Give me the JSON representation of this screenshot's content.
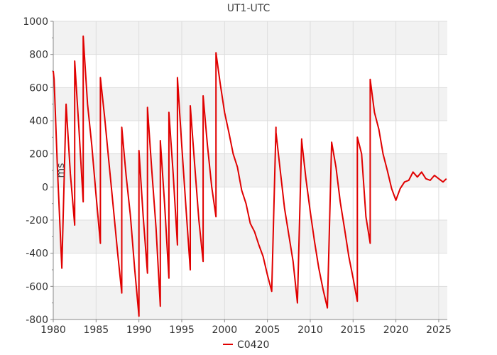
{
  "chart_data": {
    "type": "line",
    "title": "UT1-UTC",
    "xlabel": "",
    "ylabel": "ms",
    "xlim": [
      1980,
      2026
    ],
    "ylim": [
      -800,
      1000
    ],
    "x_ticks": [
      "1980",
      "1985",
      "1990",
      "1995",
      "2000",
      "2005",
      "2010",
      "2015",
      "2020",
      "2025"
    ],
    "y_ticks": [
      "1000",
      "800",
      "600",
      "400",
      "200",
      "0",
      "-200",
      "-400",
      "-600",
      "-800"
    ],
    "grid": true,
    "legend_position": "bottom",
    "colors": {
      "series": "#e00000",
      "band": "#f2f2f2",
      "grid": "#dddddd"
    },
    "series": [
      {
        "name": "C0420",
        "x": [
          1980.0,
          1980.1,
          1980.5,
          1981.0,
          1981.5,
          1981.5,
          1982.0,
          1982.5,
          1982.5,
          1983.0,
          1983.5,
          1983.5,
          1984.0,
          1984.5,
          1985.0,
          1985.5,
          1985.5,
          1986.0,
          1986.5,
          1987.0,
          1987.5,
          1988.0,
          1988.0,
          1988.5,
          1989.0,
          1989.5,
          1990.0,
          1990.0,
          1990.5,
          1991.0,
          1991.0,
          1991.5,
          1992.0,
          1992.5,
          1992.5,
          1993.0,
          1993.5,
          1993.5,
          1994.0,
          1994.5,
          1994.5,
          1995.0,
          1995.5,
          1996.0,
          1996.0,
          1996.5,
          1997.0,
          1997.5,
          1997.5,
          1998.0,
          1998.5,
          1999.0,
          1999.0,
          1999.5,
          2000.0,
          2000.5,
          2001.0,
          2001.5,
          2002.0,
          2002.5,
          2003.0,
          2003.5,
          2004.0,
          2004.5,
          2005.0,
          2005.5,
          2006.0,
          2006.0,
          2006.5,
          2007.0,
          2007.5,
          2008.0,
          2008.5,
          2009.0,
          2009.0,
          2009.5,
          2010.0,
          2010.5,
          2011.0,
          2011.5,
          2012.0,
          2012.5,
          2012.5,
          2013.0,
          2013.5,
          2014.0,
          2014.5,
          2015.0,
          2015.5,
          2015.5,
          2016.0,
          2016.5,
          2017.0,
          2017.0,
          2017.5,
          2018.0,
          2018.5,
          2019.0,
          2019.5,
          2020.0,
          2020.5,
          2021.0,
          2021.5,
          2022.0,
          2022.5,
          2023.0,
          2023.5,
          2024.0,
          2024.5,
          2025.0,
          2025.5,
          2025.9
        ],
        "values": [
          700,
          650,
          100,
          -490,
          500,
          500,
          80,
          -230,
          760,
          350,
          -90,
          910,
          500,
          250,
          -50,
          -340,
          660,
          420,
          150,
          -120,
          -390,
          -640,
          360,
          70,
          -170,
          -490,
          -780,
          220,
          -180,
          -520,
          480,
          100,
          -250,
          -720,
          280,
          -100,
          -550,
          450,
          80,
          -350,
          660,
          250,
          -130,
          -500,
          490,
          140,
          -200,
          -450,
          550,
          250,
          0,
          -180,
          810,
          620,
          450,
          330,
          200,
          120,
          -20,
          -100,
          -220,
          -270,
          -350,
          -420,
          -530,
          -630,
          360,
          330,
          100,
          -130,
          -290,
          -450,
          -700,
          290,
          280,
          50,
          -150,
          -330,
          -490,
          -620,
          -730,
          270,
          270,
          120,
          -90,
          -250,
          -420,
          -550,
          -690,
          300,
          200,
          -180,
          -340,
          650,
          450,
          350,
          200,
          100,
          -10,
          -80,
          -10,
          30,
          40,
          90,
          60,
          90,
          50,
          40,
          70,
          50,
          30,
          50
        ]
      }
    ]
  }
}
